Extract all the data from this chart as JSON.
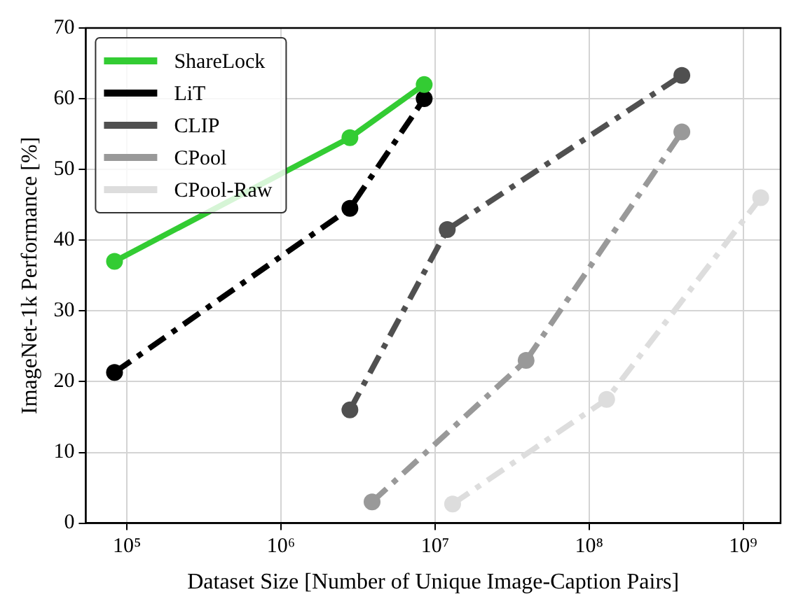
{
  "chart_data": {
    "type": "line",
    "xlabel": "Dataset Size [Number of Unique Image-Caption Pairs]",
    "ylabel": "ImageNet-1k Performance [%]",
    "log": "x",
    "xlim": [
      54000,
      1750000000
    ],
    "xticks": [
      {
        "value": 100000,
        "label": "10⁵"
      },
      {
        "value": 1000000,
        "label": "10⁶"
      },
      {
        "value": 10000000,
        "label": "10⁷"
      },
      {
        "value": 100000000,
        "label": "10⁸"
      },
      {
        "value": 1000000000,
        "label": "10⁹"
      }
    ],
    "ylim": [
      0,
      70
    ],
    "yticks": [
      0,
      10,
      20,
      30,
      40,
      50,
      60,
      70
    ],
    "grid": true,
    "legend": "top left",
    "marker": "circle",
    "series": [
      {
        "name": "ShareLock",
        "color": "#33cc33",
        "line_style": "solid",
        "x": [
          83000,
          2800000,
          8500000
        ],
        "values": [
          37,
          54.5,
          62
        ]
      },
      {
        "name": "LiT",
        "color": "#000000",
        "line_style": "dashed",
        "x": [
          83000,
          2800000,
          8500000
        ],
        "values": [
          21.3,
          44.5,
          60
        ]
      },
      {
        "name": "CLIP",
        "color": "#505050",
        "line_style": "dashed",
        "x": [
          2800000,
          12000000,
          400000000
        ],
        "values": [
          16,
          41.5,
          63.3
        ]
      },
      {
        "name": "CPool",
        "color": "#999999",
        "line_style": "dashed",
        "x": [
          3900000,
          39000000,
          400000000
        ],
        "values": [
          3,
          23,
          55.3
        ]
      },
      {
        "name": "CPool-Raw",
        "color": "#dddddd",
        "line_style": "dashed",
        "x": [
          13000000,
          130000000,
          1300000000
        ],
        "values": [
          2.7,
          17.5,
          46
        ]
      }
    ]
  }
}
